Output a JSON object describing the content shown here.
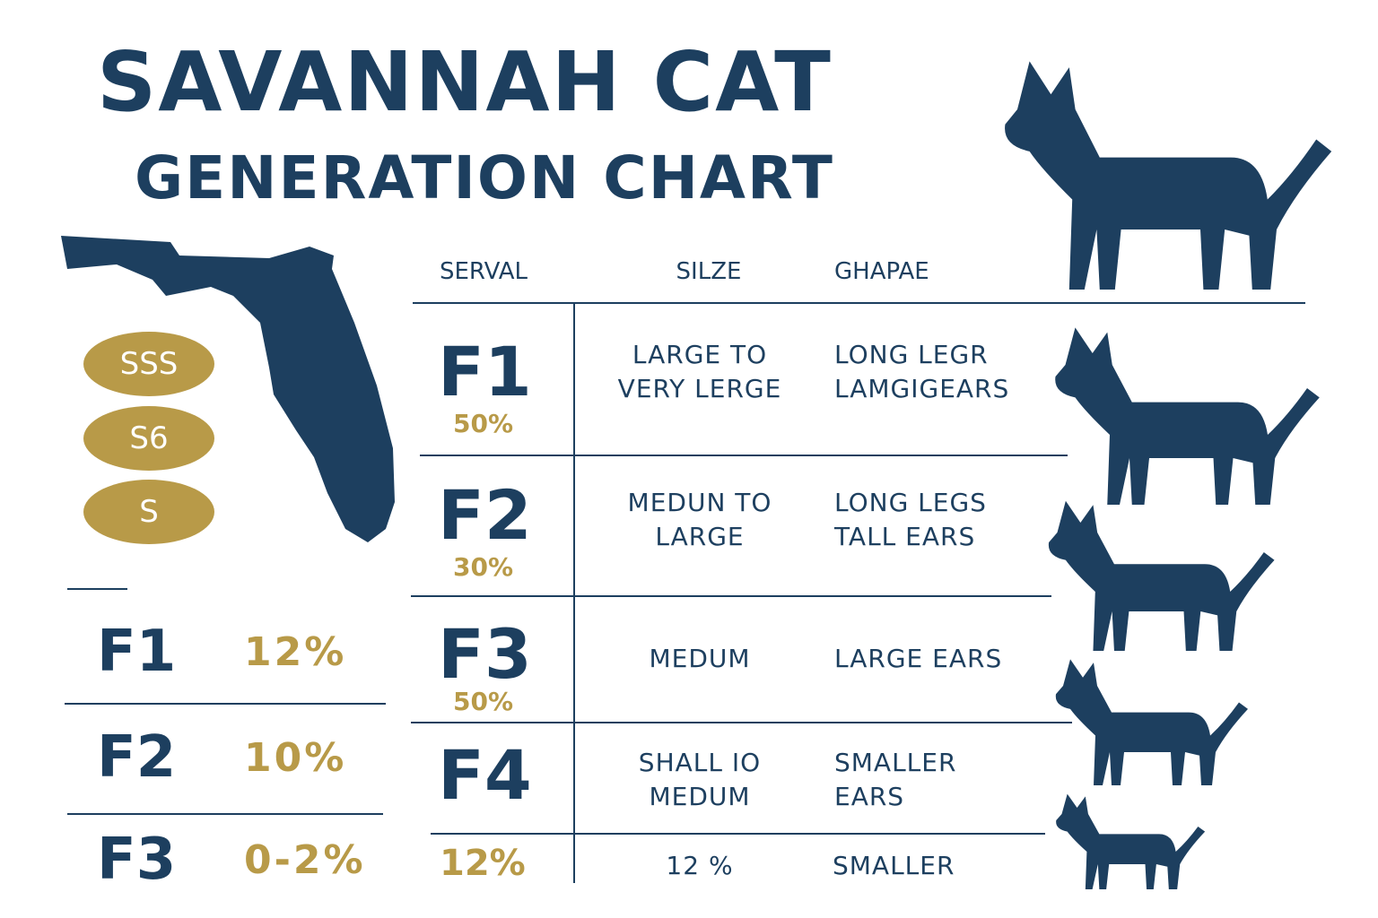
{
  "header": {
    "title": "SAVANNAH CAT",
    "subtitle": "GENERATION CHART"
  },
  "badges": [
    "SSS",
    "S6",
    "S"
  ],
  "left_table": {
    "rows": [
      [
        "F1",
        "12%"
      ],
      [
        "F2",
        "10%"
      ],
      [
        "F3",
        "0-2%"
      ]
    ]
  },
  "table": {
    "columns": [
      "SERVAL",
      "SILZE",
      "GHAPAE"
    ],
    "rows": [
      {
        "generation": "F1",
        "percent": "50%",
        "size": [
          "LARGE TO",
          "VERY LERGE"
        ],
        "shape": [
          "LONG LEGR",
          "LAMGIGEARS"
        ]
      },
      {
        "generation": "F2",
        "percent": "30%",
        "size": [
          "MEDUN TO",
          "LARGE"
        ],
        "shape": [
          "LONG LEGS",
          "TALL EARS"
        ]
      },
      {
        "generation": "F3",
        "percent": "50%",
        "size": [
          "MEDUM"
        ],
        "shape": [
          "LARGE EARS"
        ]
      },
      {
        "generation": "F4",
        "percent": "12%",
        "size": [
          "SHALL IO",
          "MEDUM"
        ],
        "shape": [
          "SMALLER",
          "EARS"
        ]
      }
    ],
    "footer": {
      "size": "12 %",
      "shape": "SMALLER"
    }
  }
}
